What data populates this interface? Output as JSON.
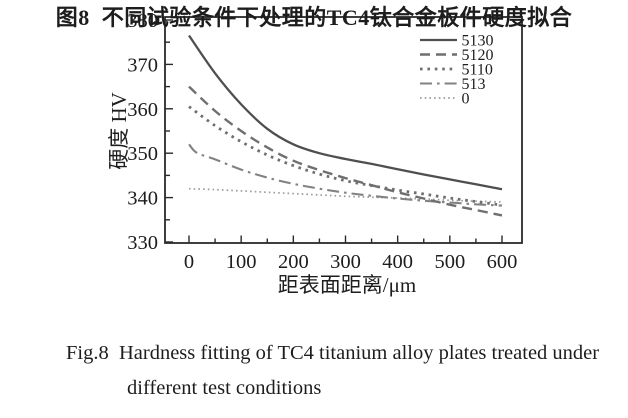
{
  "figure": {
    "caption_zh": "图8  不同试验条件下处理的TC4钛合金板件硬度拟合",
    "caption_en_line1": "Fig.8  Hardness fitting of TC4 titanium alloy plates treated under",
    "caption_en_line2": "different test conditions"
  },
  "chart_data": {
    "type": "line",
    "title": "",
    "xlabel": "距表面距离/μm",
    "ylabel": "硬度 HV",
    "xlim": [
      -46,
      638
    ],
    "ylim": [
      330,
      380
    ],
    "x_ticks_major": [
      0,
      100,
      200,
      300,
      400,
      500,
      600
    ],
    "x_ticks_minor": [
      50,
      150,
      250,
      350,
      450,
      550
    ],
    "y_ticks_major": [
      330,
      340,
      350,
      360,
      370,
      380
    ],
    "y_ticks_minor": [
      335,
      345,
      355,
      365,
      375
    ],
    "grid": false,
    "legend_position": "top-right",
    "axis_color": "#2a2a2a",
    "series": [
      {
        "name": "5130",
        "dash": "solid",
        "color": "#4f4f4f",
        "width": 2.3,
        "x": [
          0,
          50,
          100,
          150,
          200,
          250,
          300,
          350,
          400,
          450,
          500,
          550,
          600
        ],
        "y": [
          376.5,
          368,
          361,
          355.5,
          352,
          350,
          348.7,
          347.6,
          346.4,
          345.2,
          344.1,
          343,
          341.9
        ]
      },
      {
        "name": "5120",
        "dash": "dashed",
        "color": "#6f6f6f",
        "width": 2.4,
        "x": [
          0,
          50,
          100,
          150,
          200,
          250,
          300,
          350,
          400,
          450,
          500,
          550,
          600
        ],
        "y": [
          365,
          359.5,
          355,
          351.3,
          348.3,
          346.2,
          344.4,
          342.8,
          341.2,
          339.8,
          338.4,
          337.2,
          336
        ]
      },
      {
        "name": "5110",
        "dash": "dotted",
        "color": "#6f6f6f",
        "width": 2.8,
        "x": [
          0,
          50,
          100,
          150,
          200,
          250,
          300,
          350,
          400,
          450,
          500,
          550,
          600
        ],
        "y": [
          360.5,
          356.2,
          352.6,
          349.6,
          347.2,
          345.3,
          343.8,
          342.7,
          341.7,
          340.8,
          339.9,
          339.1,
          338.3
        ]
      },
      {
        "name": "513",
        "dash": "dash-dot",
        "color": "#828282",
        "width": 2.1,
        "x": [
          0,
          15,
          50,
          100,
          150,
          200,
          250,
          300,
          350,
          400,
          450,
          500,
          550,
          600
        ],
        "y": [
          352,
          350.1,
          348.6,
          346.3,
          344.5,
          343.1,
          342,
          341.1,
          340.4,
          339.8,
          339.3,
          338.9,
          338.5,
          338.2
        ]
      },
      {
        "name": "0",
        "dash": "fine-dot",
        "color": "#9b9b9b",
        "width": 1.7,
        "x": [
          0,
          50,
          100,
          150,
          200,
          250,
          300,
          350,
          400,
          450,
          500,
          550,
          600
        ],
        "y": [
          342,
          341.8,
          341.5,
          341.2,
          340.9,
          340.6,
          340.3,
          340.1,
          339.9,
          339.7,
          339.4,
          339.2,
          339
        ]
      }
    ]
  }
}
